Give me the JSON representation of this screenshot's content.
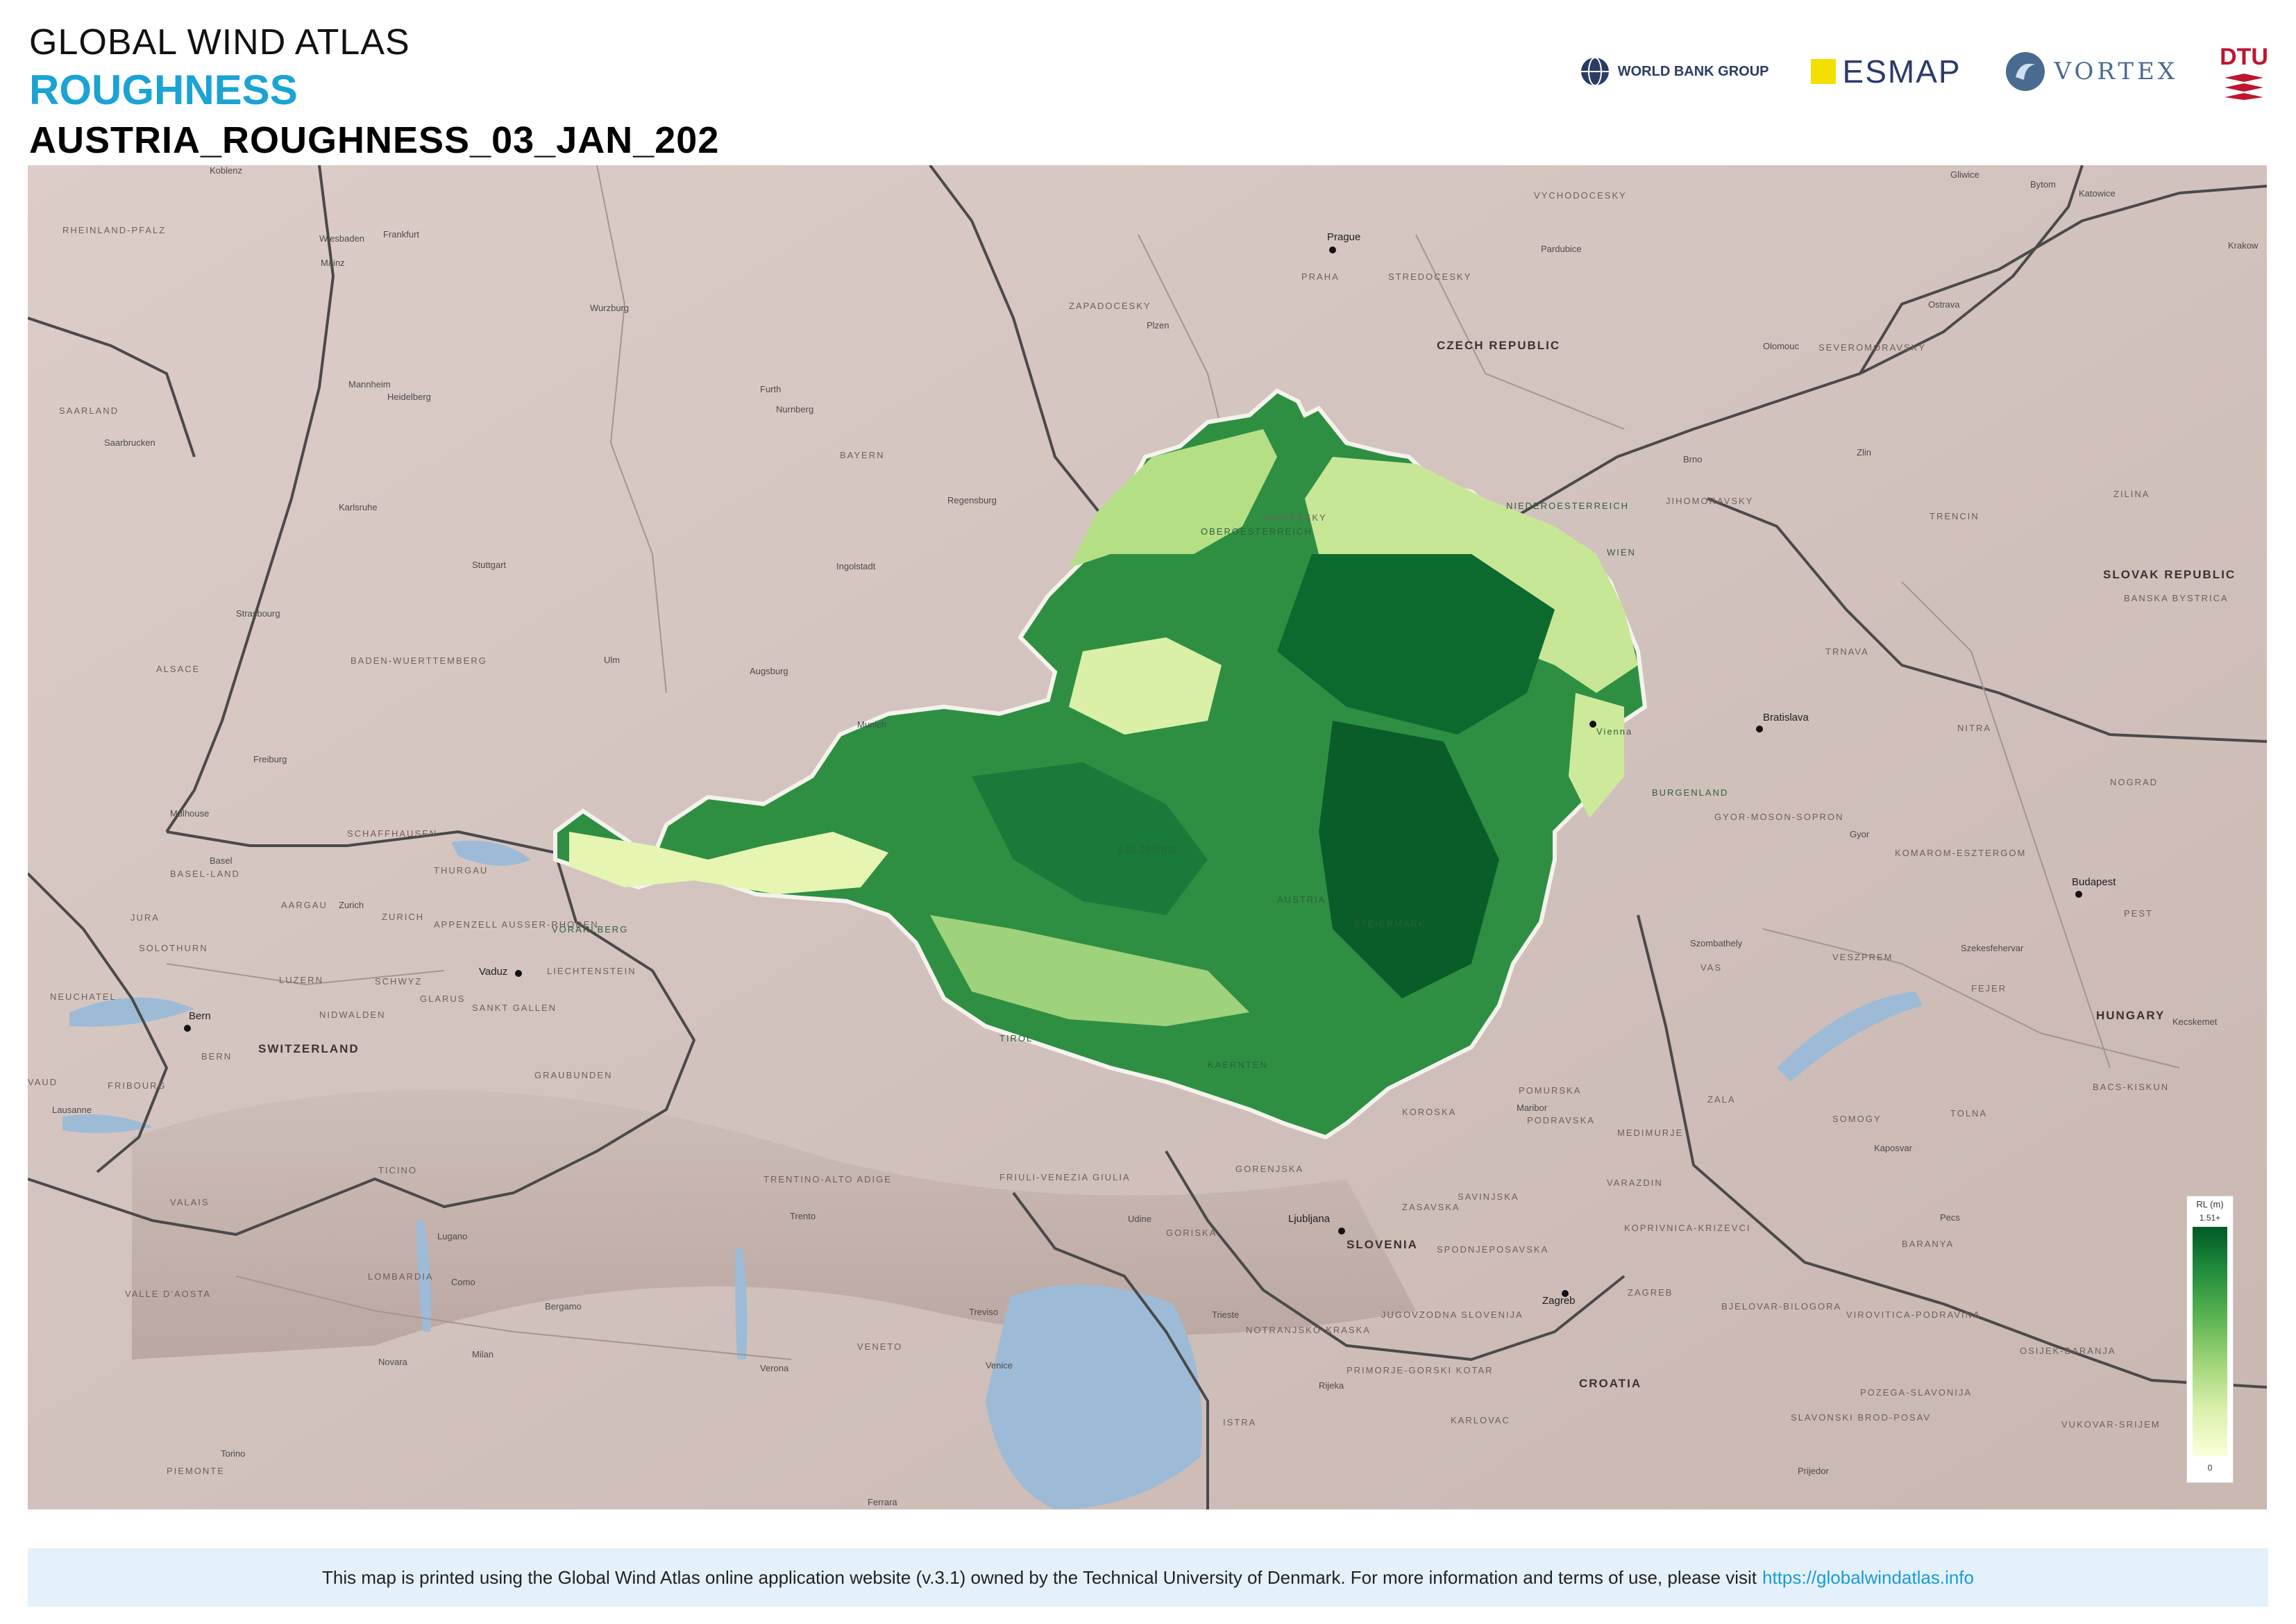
{
  "header": {
    "app_title": "GLOBAL WIND ATLAS",
    "layer_title": "ROUGHNESS",
    "document_title": "AUSTRIA_ROUGHNESS_03_JAN_202"
  },
  "logos": {
    "world_bank": "WORLD BANK GROUP",
    "esmap": "ESMAP",
    "vortex": "VORTEX",
    "dtu": "DTU"
  },
  "map": {
    "countries": [
      "CZECH REPUBLIC",
      "SLOVAK REPUBLIC",
      "HUNGARY",
      "SWITZERLAND",
      "SLOVENIA",
      "CROATIA",
      "AUSTRIA"
    ],
    "regions": [
      "RHEINLAND-PFALZ",
      "SAARLAND",
      "BAYERN",
      "BADEN-WUERTTEMBERG",
      "ALSACE",
      "ZAPADOCESKY",
      "STREDOCESKY",
      "PRAHA",
      "VYCHODOCESKY",
      "JIHOCESKY",
      "JIHOMORAVSKY",
      "SEVEROMORAVSKY",
      "TRENCIN",
      "ZILINA",
      "BANSKA BYSTRICA",
      "TRNAVA",
      "NITRA",
      "NOGRAD",
      "KOMAROM-ESZTERGOM",
      "GYOR-MOSON-SOPRON",
      "VAS",
      "VESZPREM",
      "FEJER",
      "PEST",
      "ZALA",
      "SOMOGY",
      "TOLNA",
      "BARANYA",
      "BACS-KISKUN",
      "POMURSKA",
      "KOROSKA",
      "PODRAVSKA",
      "SAVINJSKA",
      "ZASAVSKA",
      "GORENJSKA",
      "GORISKA",
      "SPODNJEPOSAVSKA",
      "MEDIMURJE",
      "VARAZDIN",
      "KOPRIVNICA-KRIZEVCI",
      "BJELOVAR-BILOGORA",
      "VIROVITICA-PODRAVINA",
      "OSIJEK-BARANJA",
      "POZEGA-SLAVONIJA",
      "SLAVONSKI BROD-POSAV",
      "VUKOVAR-SRIJEM",
      "KARLOVAC",
      "PRIMORJE-GORSKI KOTAR",
      "ISTRA",
      "NOTRANJSKO-KRASKA",
      "JUGOVZODNA SLOVENIJA",
      "ZAGREB",
      "FRIULI-VENEZIA GIULIA",
      "VENETO",
      "TRENTINO-ALTO ADIGE",
      "LOMBARDIA",
      "PIEMONTE",
      "VALLE D'AOSTA",
      "TICINO",
      "GRAUBUNDEN",
      "VALAIS",
      "BERN",
      "FRIBOURG",
      "VAUD",
      "NEUCHATEL",
      "JURA",
      "SOLOTHURN",
      "BASEL-LAND",
      "AARGAU",
      "ZURICH",
      "THURGAU",
      "SCHAFFHAUSEN",
      "LUZERN",
      "SCHWYZ",
      "NIDWALDEN",
      "GLARUS",
      "APPENZELL AUSSER-RHODEN",
      "SANKT GALLEN",
      "LIECHTENSTEIN",
      "OBEROESTERREICH",
      "NIEDEROESTERREICH",
      "WIEN",
      "BURGENLAND",
      "STEIERMARK",
      "KAERNTEN",
      "SALZBURG",
      "TIROL",
      "VORARLBERG"
    ],
    "cities": [
      "Koblenz",
      "Wiesbaden",
      "Frankfurt",
      "Mainz",
      "Wurzburg",
      "Mannheim",
      "Heidelberg",
      "Furth",
      "Nurnberg",
      "Saarbrucken",
      "Karlsruhe",
      "Stuttgart",
      "Regensburg",
      "Ingolstadt",
      "Strasbourg",
      "Ulm",
      "Augsburg",
      "Munich",
      "Freiburg",
      "Mulhouse",
      "Basel",
      "Zurich",
      "Vaduz",
      "Bern",
      "Lausanne",
      "Lugano",
      "Como",
      "Bergamo",
      "Milan",
      "Novara",
      "Torino",
      "Trento",
      "Treviso",
      "Venice",
      "Verona",
      "Udine",
      "Ferrara",
      "Prague",
      "Pardubice",
      "Plzen",
      "Olomouc",
      "Ostrava",
      "Brno",
      "Zlin",
      "Gliwice",
      "Bytom",
      "Katowice",
      "Krakow",
      "Bratislava",
      "Vienna",
      "Gyor",
      "Budapest",
      "Szombathely",
      "Szekesfehervar",
      "Kecskemet",
      "Kaposvar",
      "Pecs",
      "Maribor",
      "Ljubljana",
      "Zagreb",
      "Trieste",
      "Rijeka",
      "Prijedor"
    ],
    "capital_labels": [
      "Prague",
      "Bratislava",
      "Budapest",
      "Ljubljana",
      "Zagreb",
      "Vienna",
      "Bern",
      "Vaduz"
    ]
  },
  "legend": {
    "title": "RL (m)",
    "max_label": "1.51+",
    "min_label": "0",
    "colors": [
      "#005a25",
      "#1f8a3c",
      "#56b14f",
      "#a2d67a",
      "#dbf1ad",
      "#fbffd9"
    ]
  },
  "footer": {
    "text": "This map is printed using the Global Wind Atlas online application website (v.3.1) owned by the Technical University of Denmark. For more information and terms of use, please visit",
    "link": "https://globalwindatlas.info"
  }
}
